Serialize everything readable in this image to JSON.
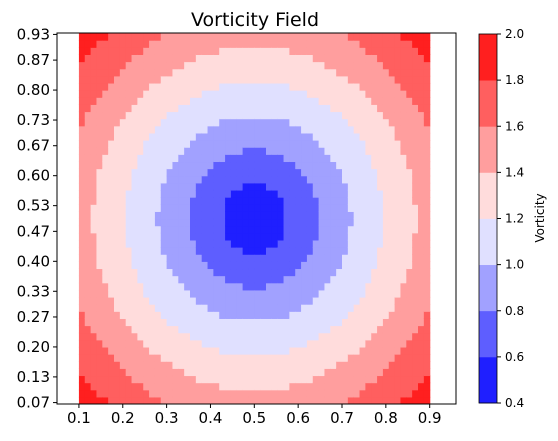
{
  "chart_data": {
    "type": "contour",
    "title": "Vorticity Field",
    "xlabel": "",
    "ylabel": "",
    "x_ticks": [
      "0.1",
      "0.2",
      "0.3",
      "0.4",
      "0.5",
      "0.6",
      "0.7",
      "0.8",
      "0.9"
    ],
    "y_ticks": [
      "0.07",
      "0.13",
      "0.20",
      "0.27",
      "0.33",
      "0.40",
      "0.47",
      "0.53",
      "0.60",
      "0.67",
      "0.73",
      "0.80",
      "0.87",
      "0.93"
    ],
    "xlim": [
      0.05,
      0.96
    ],
    "ylim": [
      0.0667,
      0.9333
    ],
    "data_extent": {
      "x": [
        0.1,
        0.9
      ],
      "y": [
        0.0667,
        0.9333
      ]
    },
    "center": [
      0.5,
      0.5
    ],
    "field_model": "value = 0.4 + r_scaled * 1.6, r = distance from center",
    "levels": [
      0.4,
      0.6,
      0.8,
      1.0,
      1.2,
      1.4,
      1.6,
      1.8,
      2.0
    ],
    "level_colors": [
      "#1f1fff",
      "#5e5eff",
      "#a1a1ff",
      "#e0e0ff",
      "#ffdcdc",
      "#ff9e9e",
      "#ff5f5f",
      "#ff1f1f"
    ],
    "colorbar": {
      "label": "Vorticity",
      "ticks": [
        "0.4",
        "0.6",
        "0.8",
        "1.0",
        "1.2",
        "1.4",
        "1.6",
        "1.8",
        "2.0"
      ],
      "range": [
        0.4,
        2.0
      ]
    },
    "grid": false,
    "legend": "none"
  }
}
